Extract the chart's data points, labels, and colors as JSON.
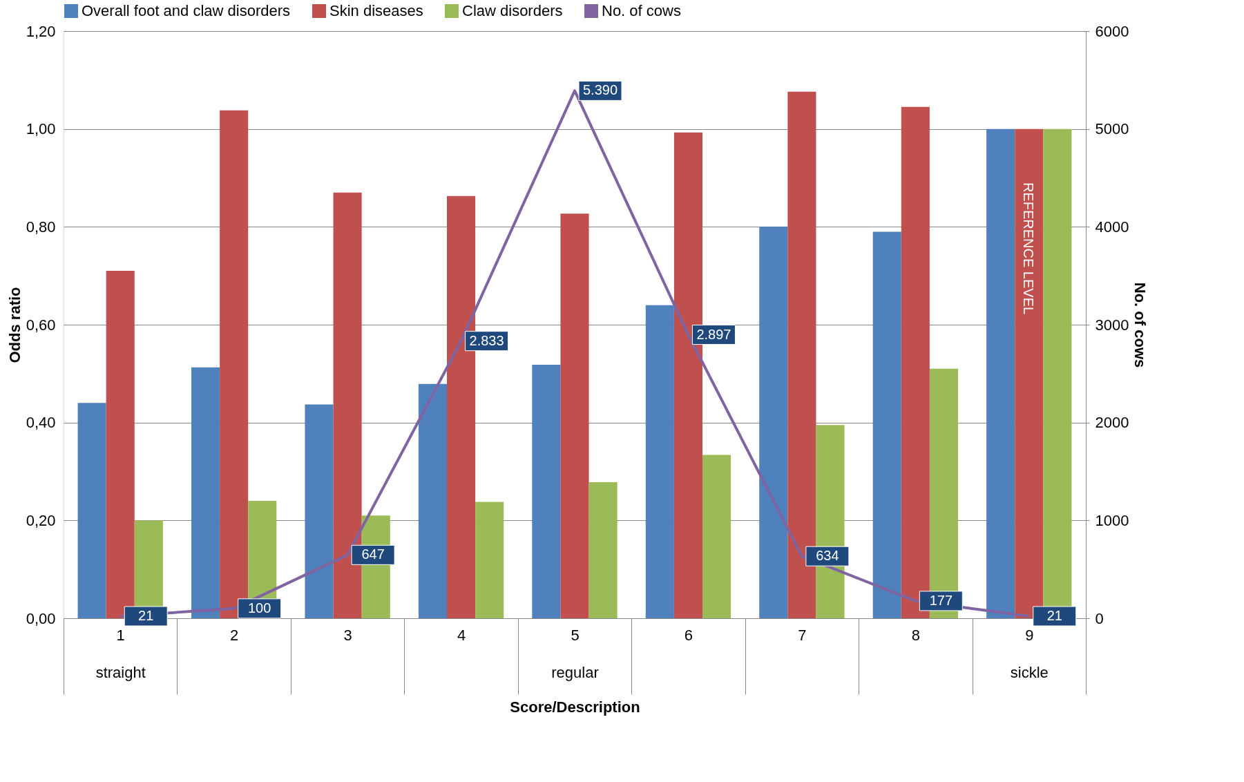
{
  "chart_data": {
    "type": "bar",
    "xlabel": "Score/Description",
    "ylabel": "Odds ratio",
    "y2label": "No. of cows",
    "categories": [
      "1\nstraight",
      "2",
      "3",
      "4",
      "5\nregular",
      "6",
      "7",
      "8",
      "9\nsickle"
    ],
    "series": [
      {
        "name": "Overall foot and claw disorders",
        "color": "#4f81bd",
        "values": [
          0.44,
          0.513,
          0.437,
          0.479,
          0.518,
          0.64,
          0.8,
          0.79,
          1.0
        ]
      },
      {
        "name": "Skin diseases",
        "color": "#c0504d",
        "values": [
          0.71,
          1.038,
          0.87,
          0.863,
          0.827,
          0.993,
          1.076,
          1.045,
          1.0
        ]
      },
      {
        "name": "Claw disorders",
        "color": "#9bbb59",
        "values": [
          0.2,
          0.24,
          0.21,
          0.238,
          0.278,
          0.334,
          0.395,
          0.51,
          1.0
        ]
      },
      {
        "name": "No. of cows",
        "type": "line",
        "axis": "y2",
        "color": "#8064a2",
        "values": [
          21,
          100,
          647,
          2833,
          5390,
          2897,
          634,
          177,
          21
        ],
        "value_labels": [
          "21",
          "100",
          "647",
          "2.833",
          "5.390",
          "2.897",
          "634",
          "177",
          "21"
        ]
      }
    ],
    "ylim": [
      0,
      1.2
    ],
    "yticks": [
      {
        "value": 0,
        "label": "0,00"
      },
      {
        "value": 0.2,
        "label": "0,20"
      },
      {
        "value": 0.4,
        "label": "0,40"
      },
      {
        "value": 0.6,
        "label": "0,60"
      },
      {
        "value": 0.8,
        "label": "0,80"
      },
      {
        "value": 1.0,
        "label": "1,00"
      },
      {
        "value": 1.2,
        "label": "1,20"
      }
    ],
    "y2lim": [
      0,
      6000
    ],
    "y2ticks": [
      0,
      1000,
      2000,
      3000,
      4000,
      5000,
      6000
    ],
    "annotations": [
      "REFERENCE LEVEL"
    ],
    "grid": "y",
    "legend": "top",
    "marker": "none"
  }
}
